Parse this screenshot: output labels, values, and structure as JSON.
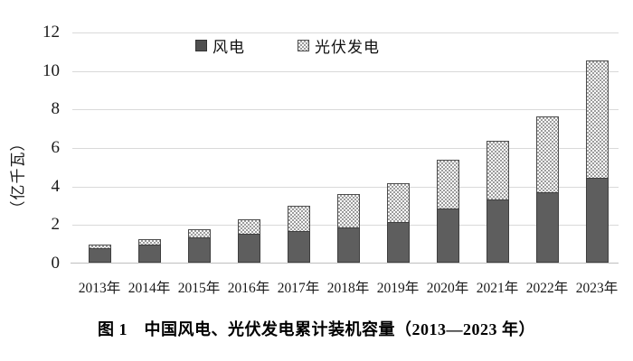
{
  "figure": {
    "caption": "图 1　中国风电、光伏发电累计装机容量（2013—2023 年）"
  },
  "legend": {
    "wind_label": "风电",
    "solar_label": "光伏发电"
  },
  "chart_data": {
    "type": "bar",
    "stacked": true,
    "title": "图 1　中国风电、光伏发电累计装机容量（2013—2023 年）",
    "ylabel": "（亿千瓦）",
    "xlabel": "",
    "ylim": [
      0,
      12
    ],
    "yticks": [
      0,
      2,
      4,
      6,
      8,
      10,
      12
    ],
    "grid": true,
    "legend_position": "top-center",
    "categories": [
      "2013年",
      "2014年",
      "2015年",
      "2016年",
      "2017年",
      "2018年",
      "2019年",
      "2020年",
      "2021年",
      "2022年",
      "2023年"
    ],
    "series": [
      {
        "name": "风电",
        "color": "#5e5e5e",
        "pattern": "solid",
        "values": [
          0.77,
          0.96,
          1.29,
          1.49,
          1.64,
          1.84,
          2.1,
          2.82,
          3.28,
          3.65,
          4.41
        ]
      },
      {
        "name": "光伏发电",
        "color": "#9c9c9c",
        "pattern": "checkerboard",
        "values": [
          0.19,
          0.28,
          0.43,
          0.77,
          1.3,
          1.74,
          2.04,
          2.53,
          3.06,
          3.93,
          6.09
        ]
      }
    ],
    "totals": [
      0.96,
      1.24,
      1.72,
      2.26,
      2.94,
      3.58,
      4.14,
      5.35,
      6.34,
      7.58,
      10.5
    ]
  },
  "colors": {
    "wind_bar": "#5e5e5e",
    "solar_pattern": "#9c9c9c",
    "gridline": "#d9d9d9",
    "axis_line": "#bfbfbf",
    "text": "#1a1a1a"
  }
}
